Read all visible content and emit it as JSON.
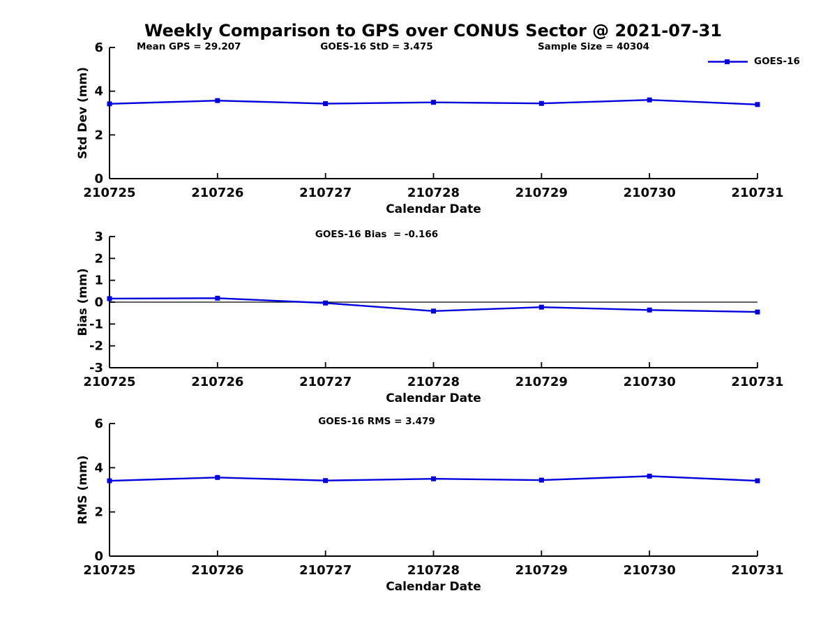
{
  "figure_title": "Weekly Comparison to GPS over CONUS Sector @ 2021-07-31",
  "legend": {
    "label": "GOES-16"
  },
  "colors": {
    "line": "#0000dd",
    "axis": "#000000",
    "text": "#000000"
  },
  "chart_data": [
    {
      "type": "line",
      "subplot": "std-dev",
      "title": "",
      "ylabel": "Std Dev (mm)",
      "xlabel": "Calendar Date",
      "categories": [
        "210725",
        "210726",
        "210727",
        "210728",
        "210729",
        "210730",
        "210731"
      ],
      "series": [
        {
          "name": "GOES-16",
          "values": [
            3.42,
            3.57,
            3.43,
            3.49,
            3.44,
            3.6,
            3.39
          ]
        }
      ],
      "ylim": [
        0,
        6
      ],
      "yticks": [
        0,
        2,
        4,
        6
      ],
      "grid": false,
      "legend_position": "top-right",
      "zero_line": false,
      "annotations": [
        {
          "text": "Mean GPS = 29.207"
        },
        {
          "text": "GOES-16 StD = 3.475"
        },
        {
          "text": "Sample Size = 40304"
        }
      ]
    },
    {
      "type": "line",
      "subplot": "bias",
      "title": "",
      "ylabel": "Bias (mm)",
      "xlabel": "Calendar Date",
      "categories": [
        "210725",
        "210726",
        "210727",
        "210728",
        "210729",
        "210730",
        "210731"
      ],
      "series": [
        {
          "name": "GOES-16",
          "values": [
            0.16,
            0.18,
            -0.04,
            -0.41,
            -0.23,
            -0.36,
            -0.45
          ]
        }
      ],
      "ylim": [
        -3,
        3
      ],
      "yticks": [
        3,
        2,
        1,
        0,
        -1,
        -2,
        -3
      ],
      "grid": false,
      "zero_line": true,
      "annotations": [
        {
          "text": "GOES-16 Bias  = -0.166"
        }
      ]
    },
    {
      "type": "line",
      "subplot": "rms",
      "title": "",
      "ylabel": "RMS (mm)",
      "xlabel": "Calendar Date",
      "categories": [
        "210725",
        "210726",
        "210727",
        "210728",
        "210729",
        "210730",
        "210731"
      ],
      "series": [
        {
          "name": "GOES-16",
          "values": [
            3.41,
            3.56,
            3.42,
            3.5,
            3.44,
            3.62,
            3.41
          ]
        }
      ],
      "ylim": [
        0,
        6
      ],
      "yticks": [
        0,
        2,
        4,
        6
      ],
      "grid": false,
      "zero_line": false,
      "annotations": [
        {
          "text": "GOES-16 RMS = 3.479"
        }
      ]
    }
  ]
}
